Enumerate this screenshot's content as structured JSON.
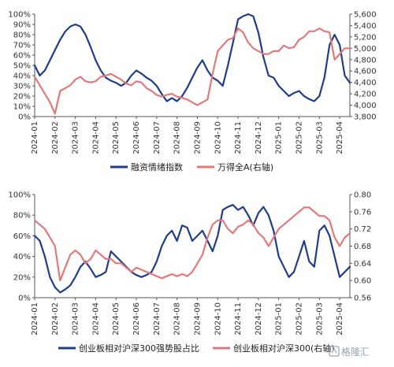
{
  "chart_data": [
    {
      "type": "line",
      "title": "",
      "categories": [
        "2024-01",
        "2024-02",
        "2024-03",
        "2024-04",
        "2024-05",
        "2024-06",
        "2024-07",
        "2024-08",
        "2024-09",
        "2024-10",
        "2024-11",
        "2024-12",
        "2025-01",
        "2025-02",
        "2025-03",
        "2025-04"
      ],
      "x": [
        0,
        0.25,
        0.5,
        0.75,
        1,
        1.25,
        1.5,
        1.75,
        2,
        2.25,
        2.5,
        2.75,
        3,
        3.25,
        3.5,
        3.75,
        4,
        4.25,
        4.5,
        4.75,
        5,
        5.25,
        5.5,
        5.75,
        6,
        6.25,
        6.5,
        6.75,
        7,
        7.25,
        7.5,
        7.75,
        8,
        8.25,
        8.5,
        8.75,
        9,
        9.25,
        9.5,
        9.75,
        10,
        10.25,
        10.5,
        10.75,
        11,
        11.25,
        11.5,
        11.75,
        12,
        12.25,
        12.5,
        12.75,
        13,
        13.25,
        13.5,
        13.75,
        14,
        14.25,
        14.5,
        14.75,
        15,
        15.25,
        15.5
      ],
      "y_left": {
        "ticks": [
          "0%",
          "10%",
          "20%",
          "30%",
          "40%",
          "50%",
          "60%",
          "70%",
          "80%",
          "90%",
          "100%"
        ],
        "ylim": [
          0,
          100
        ]
      },
      "y_right": {
        "ticks": [
          "3,800",
          "4,000",
          "4,200",
          "4,400",
          "4,600",
          "4,800",
          "5,000",
          "5,200",
          "5,400",
          "5,600"
        ],
        "ylim": [
          3800,
          5600
        ]
      },
      "series": [
        {
          "name": "融资情绪指数",
          "axis": "left",
          "color": "#1f3d8a",
          "values": [
            50,
            40,
            45,
            55,
            65,
            75,
            83,
            88,
            90,
            88,
            80,
            68,
            55,
            45,
            38,
            35,
            33,
            30,
            33,
            40,
            45,
            42,
            38,
            35,
            30,
            22,
            15,
            18,
            15,
            20,
            28,
            38,
            48,
            55,
            45,
            38,
            35,
            30,
            50,
            72,
            95,
            98,
            100,
            98,
            82,
            58,
            40,
            38,
            30,
            25,
            20,
            23,
            25,
            20,
            17,
            15,
            20,
            38,
            70,
            80,
            70,
            40,
            33
          ]
        },
        {
          "name": "万得全A(右轴)",
          "axis": "right",
          "color": "#e07a7a",
          "values": [
            4500,
            4350,
            4200,
            4050,
            3850,
            4250,
            4300,
            4350,
            4450,
            4500,
            4420,
            4400,
            4420,
            4500,
            4520,
            4550,
            4500,
            4450,
            4380,
            4350,
            4420,
            4400,
            4300,
            4250,
            4180,
            4150,
            4180,
            4200,
            4150,
            4130,
            4100,
            4050,
            4000,
            4050,
            4100,
            4550,
            4950,
            5050,
            5150,
            5180,
            5350,
            5280,
            5100,
            5000,
            4950,
            4900,
            4900,
            4950,
            4950,
            5050,
            5000,
            5020,
            5150,
            5200,
            5300,
            5300,
            5350,
            5300,
            5280,
            4800,
            4900,
            5000,
            5000
          ]
        }
      ],
      "grid": false,
      "legend_position": "bottom"
    },
    {
      "type": "line",
      "title": "",
      "categories": [
        "2024-01",
        "2024-02",
        "2024-03",
        "2024-04",
        "2024-05",
        "2024-06",
        "2024-07",
        "2024-08",
        "2024-09",
        "2024-10",
        "2024-11",
        "2024-12",
        "2025-01",
        "2025-02",
        "2025-03",
        "2025-04"
      ],
      "x": [
        0,
        0.25,
        0.5,
        0.75,
        1,
        1.25,
        1.5,
        1.75,
        2,
        2.25,
        2.5,
        2.75,
        3,
        3.25,
        3.5,
        3.75,
        4,
        4.25,
        4.5,
        4.75,
        5,
        5.25,
        5.5,
        5.75,
        6,
        6.25,
        6.5,
        6.75,
        7,
        7.25,
        7.5,
        7.75,
        8,
        8.25,
        8.5,
        8.75,
        9,
        9.25,
        9.5,
        9.75,
        10,
        10.25,
        10.5,
        10.75,
        11,
        11.25,
        11.5,
        11.75,
        12,
        12.25,
        12.5,
        12.75,
        13,
        13.25,
        13.5,
        13.75,
        14,
        14.25,
        14.5,
        14.75,
        15,
        15.25,
        15.5
      ],
      "y_left": {
        "ticks": [
          "0%",
          "20%",
          "40%",
          "60%",
          "80%",
          "100%"
        ],
        "ylim": [
          0,
          100
        ]
      },
      "y_right": {
        "ticks": [
          "0.56",
          "0.60",
          "0.64",
          "0.68",
          "0.72",
          "0.76",
          "0.80"
        ],
        "ylim": [
          0.56,
          0.8
        ]
      },
      "series": [
        {
          "name": "创业板相对沪深300强势股占比",
          "axis": "left",
          "color": "#1f3d8a",
          "values": [
            60,
            55,
            40,
            20,
            10,
            5,
            8,
            12,
            20,
            30,
            35,
            28,
            20,
            22,
            25,
            45,
            40,
            35,
            30,
            25,
            22,
            20,
            22,
            25,
            35,
            50,
            60,
            65,
            55,
            70,
            68,
            55,
            60,
            65,
            55,
            45,
            60,
            85,
            88,
            90,
            85,
            88,
            80,
            70,
            82,
            88,
            80,
            65,
            40,
            30,
            20,
            25,
            40,
            55,
            35,
            30,
            65,
            70,
            60,
            40,
            20,
            25,
            30
          ]
        },
        {
          "name": "创业板相对沪深300(右轴)",
          "axis": "right",
          "color": "#e07a7a",
          "values": [
            0.74,
            0.73,
            0.72,
            0.7,
            0.68,
            0.6,
            0.63,
            0.66,
            0.67,
            0.66,
            0.64,
            0.65,
            0.67,
            0.66,
            0.65,
            0.65,
            0.64,
            0.64,
            0.63,
            0.62,
            0.63,
            0.625,
            0.62,
            0.615,
            0.61,
            0.605,
            0.61,
            0.615,
            0.61,
            0.615,
            0.61,
            0.62,
            0.64,
            0.66,
            0.7,
            0.73,
            0.74,
            0.74,
            0.72,
            0.71,
            0.725,
            0.73,
            0.74,
            0.73,
            0.71,
            0.7,
            0.68,
            0.7,
            0.72,
            0.73,
            0.74,
            0.75,
            0.76,
            0.77,
            0.77,
            0.76,
            0.75,
            0.75,
            0.74,
            0.7,
            0.68,
            0.7,
            0.71
          ]
        }
      ],
      "grid": false,
      "legend_position": "bottom"
    }
  ],
  "watermark": {
    "text": "格隆汇",
    "icon": "gelonghui-logo-icon"
  }
}
